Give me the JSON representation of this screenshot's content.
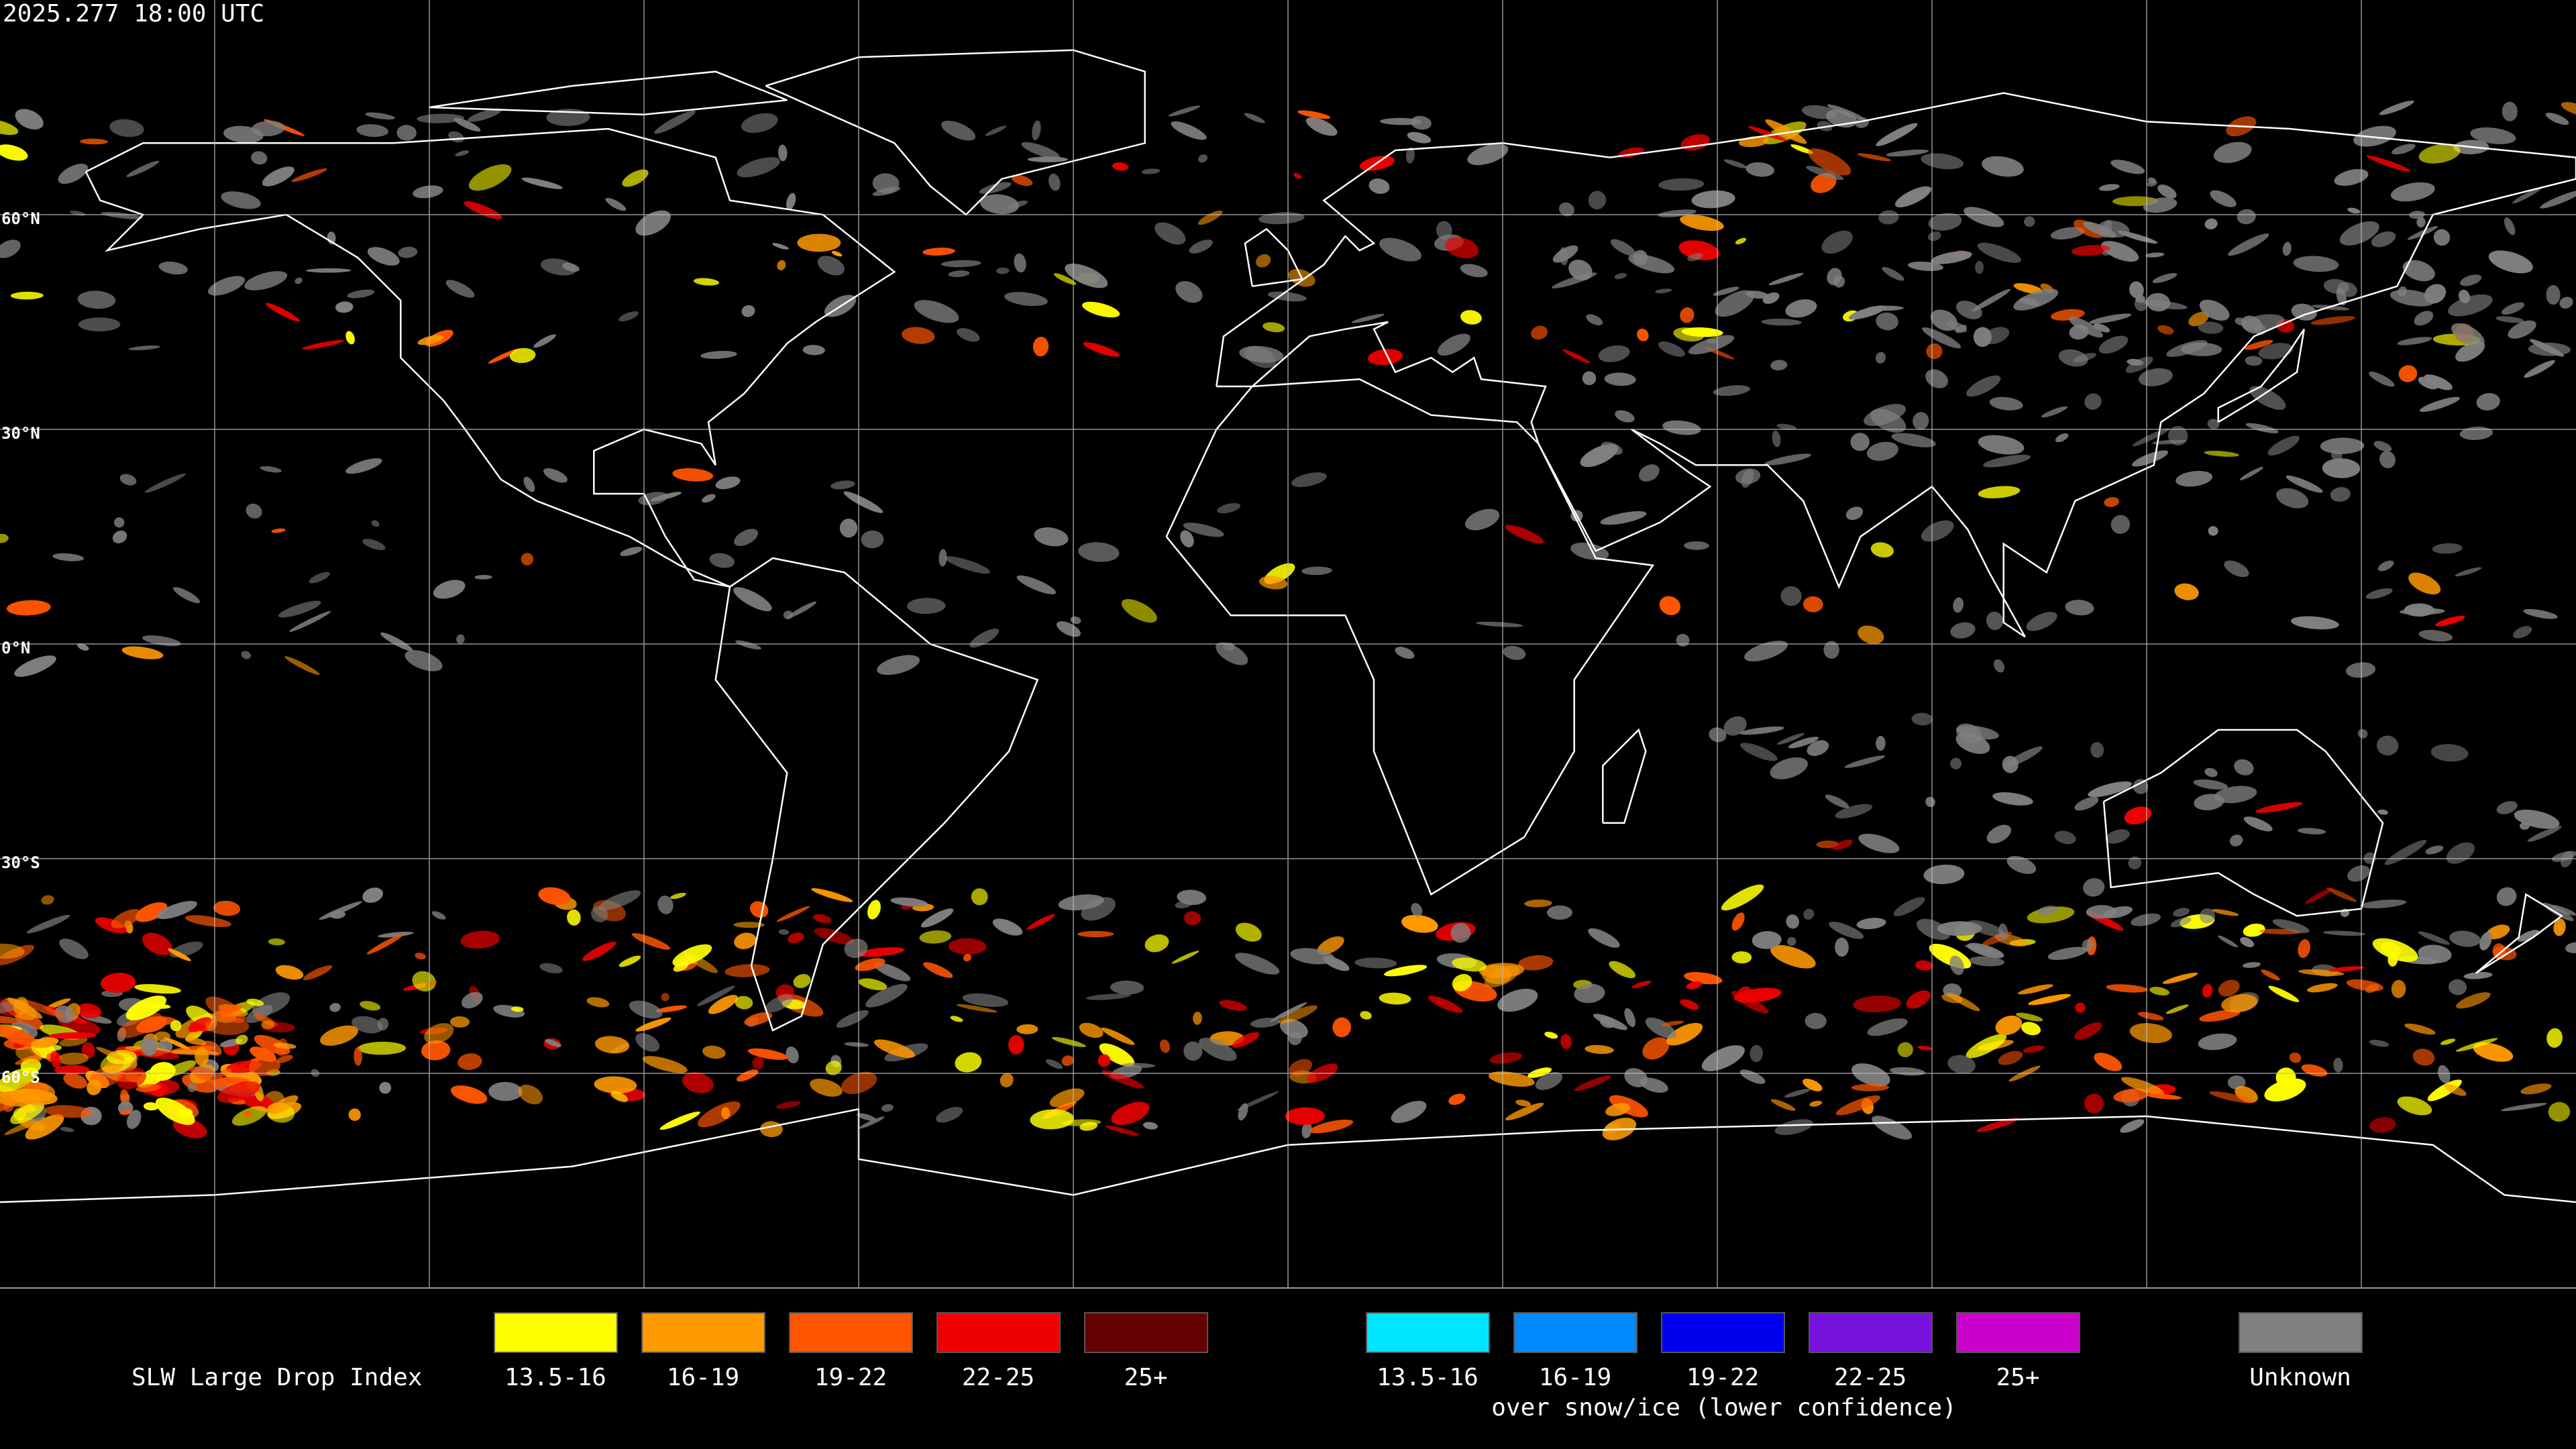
{
  "timestamp": "2025.277 18:00 UTC",
  "latitude_labels": [
    "60°N",
    "30°N",
    "0°N",
    "30°S",
    "60°S"
  ],
  "legend": {
    "title": "SLW Large Drop Index",
    "liquid": [
      {
        "label": "13.5-16",
        "color": "#ffff00"
      },
      {
        "label": "16-19",
        "color": "#ff9900"
      },
      {
        "label": "19-22",
        "color": "#ff5500"
      },
      {
        "label": "22-25",
        "color": "#ee0000"
      },
      {
        "label": "25+",
        "color": "#660000"
      }
    ],
    "snow_ice": {
      "items": [
        {
          "label": "13.5-16",
          "color": "#00e5ff"
        },
        {
          "label": "16-19",
          "color": "#0088ff"
        },
        {
          "label": "19-22",
          "color": "#0000ee"
        },
        {
          "label": "22-25",
          "color": "#7711dd"
        },
        {
          "label": "25+",
          "color": "#cc00cc"
        }
      ],
      "caption": "over snow/ice (lower confidence)"
    },
    "unknown": {
      "label": "Unknown",
      "color": "#808080"
    }
  }
}
